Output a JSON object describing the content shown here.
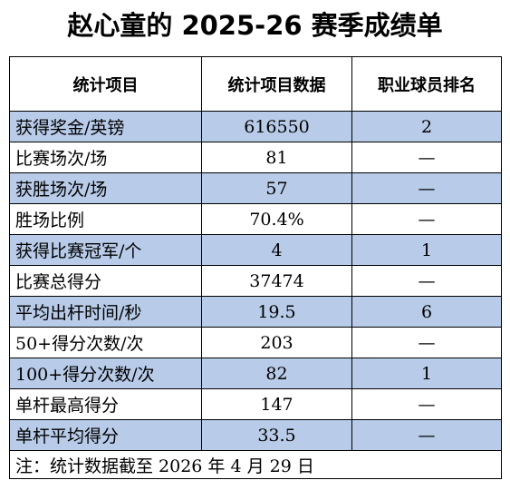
{
  "header": {
    "title": "赵心童的 2025-26 赛季成绩单"
  },
  "table": {
    "columns": [
      "统计项目",
      "统计项目数据",
      "职业球员排名"
    ],
    "rows": [
      [
        "获得奖金/英镑",
        "616550",
        "2"
      ],
      [
        "比赛场次/场",
        "81",
        "—"
      ],
      [
        "获胜场次/场",
        "57",
        "—"
      ],
      [
        "胜场比例",
        "70.4%",
        "—"
      ],
      [
        "获得比赛冠军/个",
        "4",
        "1"
      ],
      [
        "比赛总得分",
        "37474",
        "—"
      ],
      [
        "平均出杆时间/秒",
        "19.5",
        "6"
      ],
      [
        "50+得分次数/次",
        "203",
        "—"
      ],
      [
        "100+得分次数/次",
        "82",
        "1"
      ],
      [
        "单杆最高得分",
        "147",
        "—"
      ],
      [
        "单杆平均得分",
        "33.5",
        "—"
      ]
    ],
    "note": "注：统计数据截至 2026 年 4 月 29 日"
  }
}
